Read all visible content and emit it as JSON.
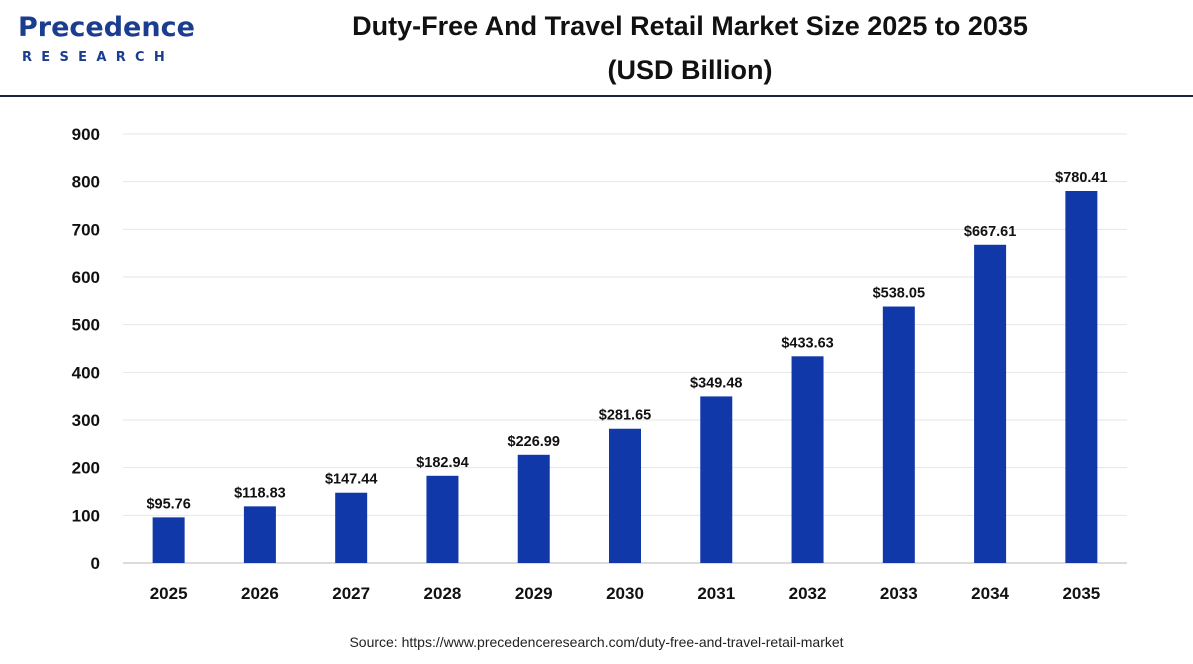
{
  "logo": {
    "main": "Precedence",
    "sub": "RESEARCH",
    "color": "#1b3d8f"
  },
  "title_line1": "Duty-Free And Travel Retail Market Size 2025 to 2035",
  "title_line2": "(USD Billion)",
  "source": "Source: https://www.precedenceresearch.com/duty-free-and-travel-retail-market",
  "colors": {
    "bar": "#1138a8",
    "grid": "#e6e6e6",
    "axis": "#cfcfcf"
  },
  "chart_data": {
    "type": "bar",
    "title": "Duty-Free And Travel Retail Market Size 2025 to 2035 (USD Billion)",
    "xlabel": "",
    "ylabel": "",
    "categories": [
      "2025",
      "2026",
      "2027",
      "2028",
      "2029",
      "2030",
      "2031",
      "2032",
      "2033",
      "2034",
      "2035"
    ],
    "values": [
      95.76,
      118.83,
      147.44,
      182.94,
      226.99,
      281.65,
      349.48,
      433.63,
      538.05,
      667.61,
      780.41
    ],
    "value_labels": [
      "$95.76",
      "$118.83",
      "$147.44",
      "$182.94",
      "$226.99",
      "$281.65",
      "$349.48",
      "$433.63",
      "$538.05",
      "$667.61",
      "$780.41"
    ],
    "ylim": [
      0,
      900
    ],
    "yticks": [
      "0",
      "100",
      "200",
      "300",
      "400",
      "500",
      "600",
      "700",
      "800",
      "900"
    ],
    "grid": true,
    "legend": "none"
  }
}
